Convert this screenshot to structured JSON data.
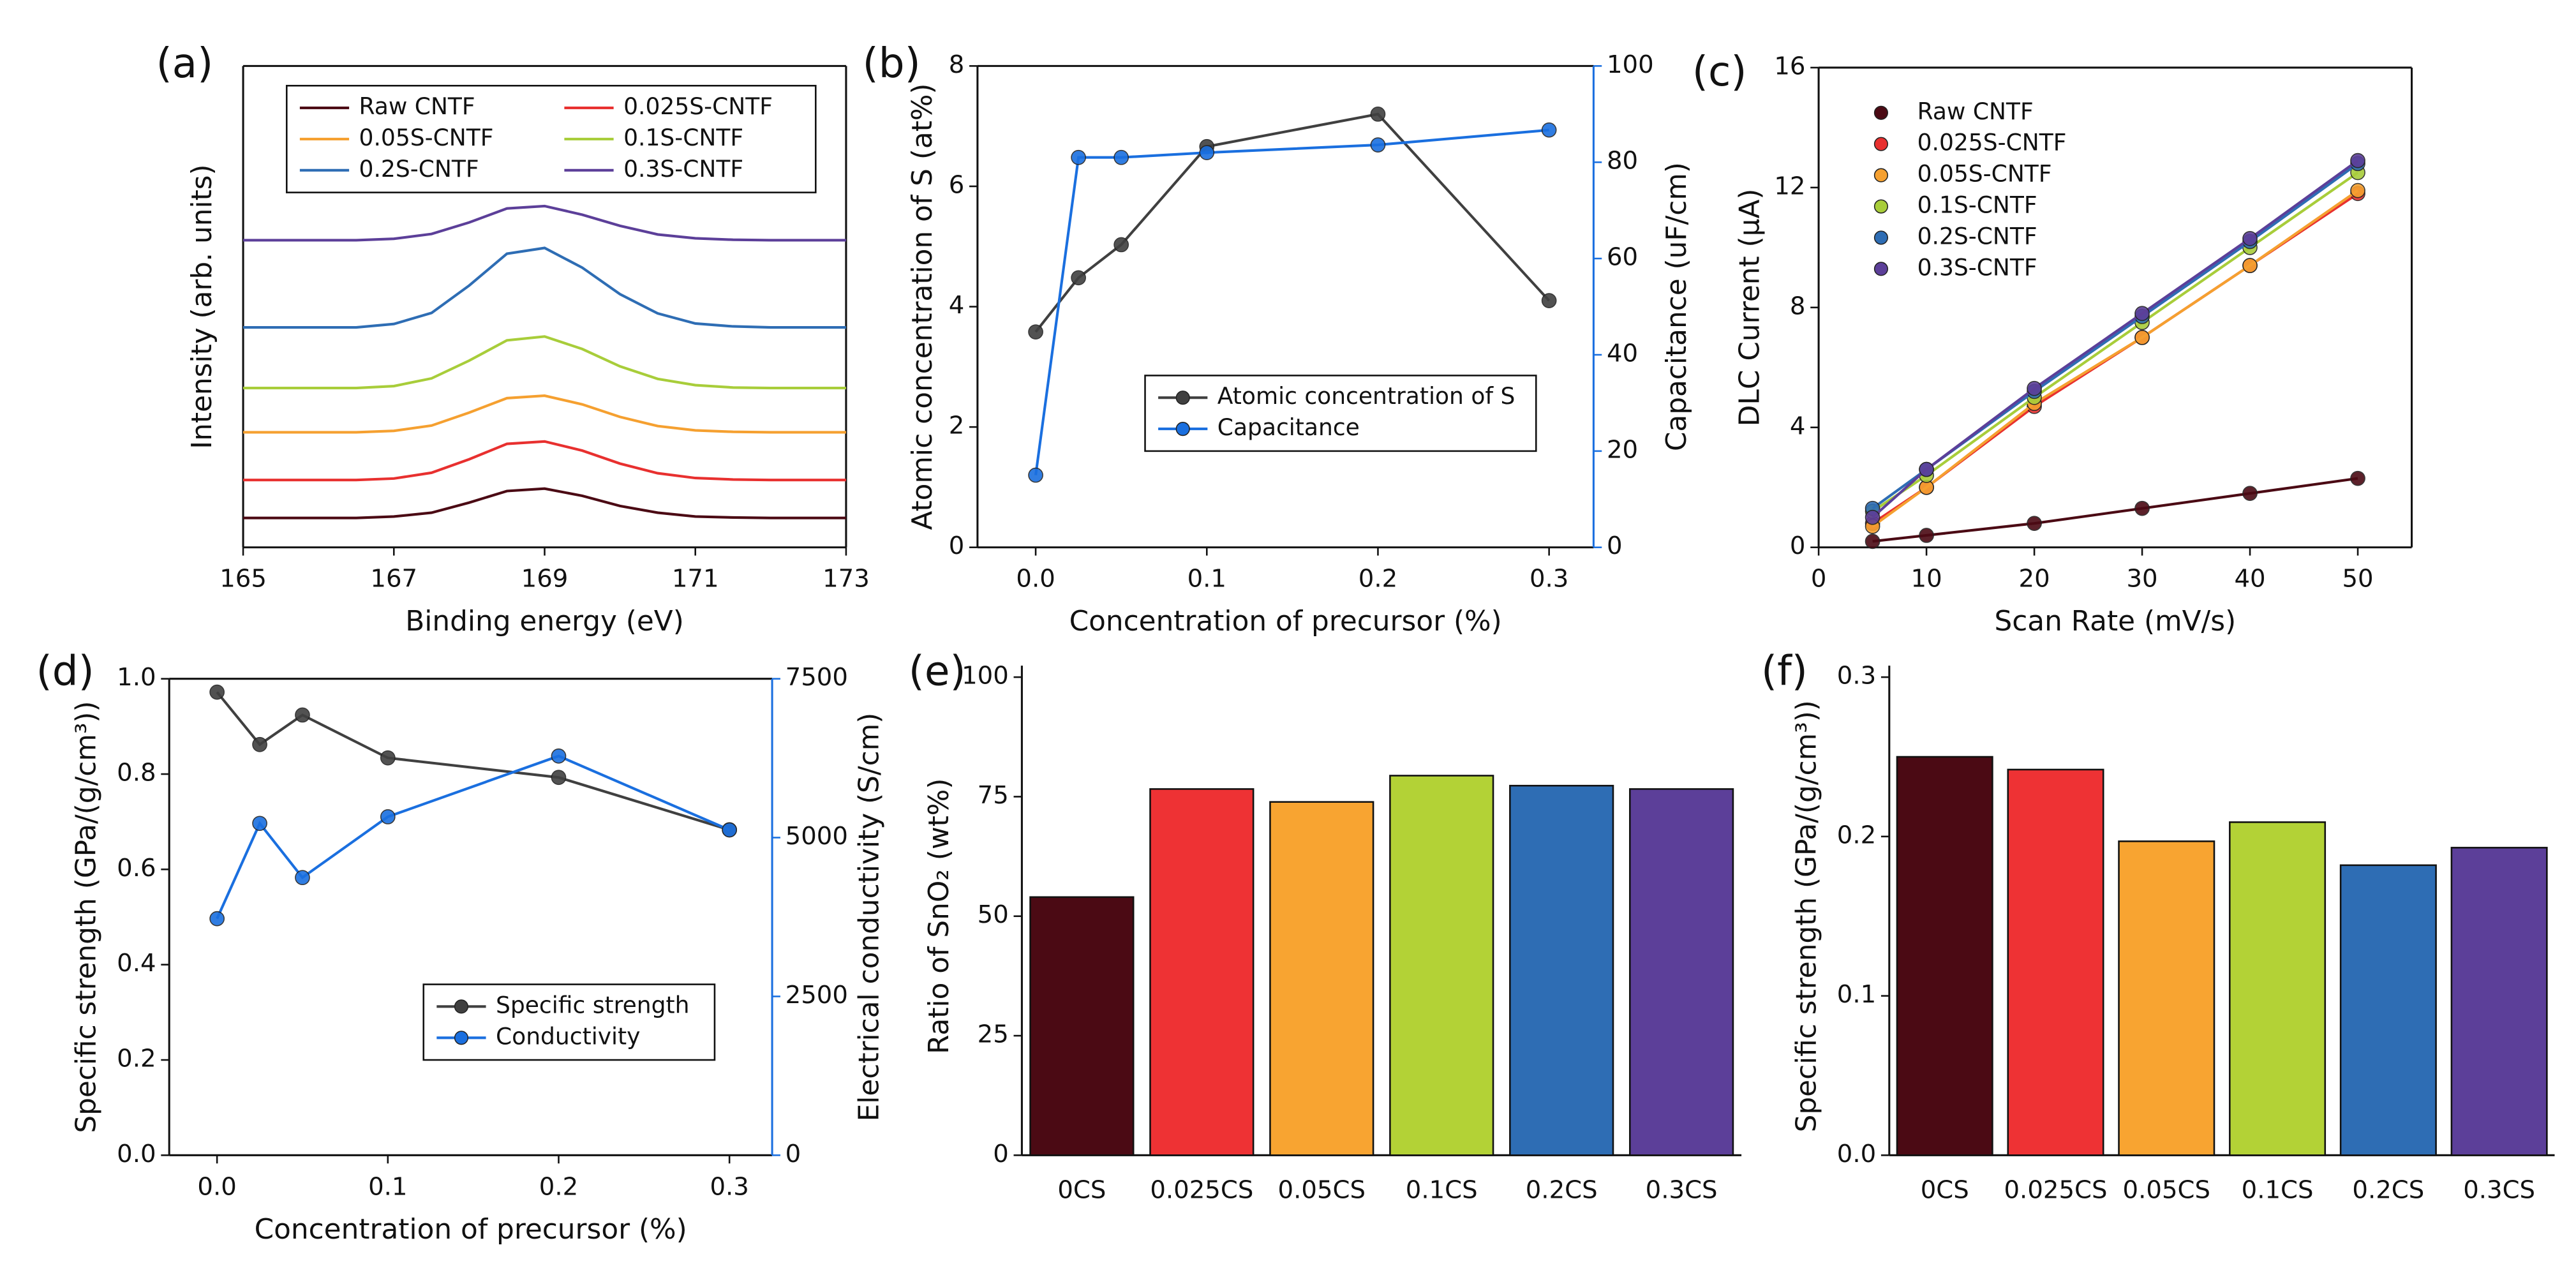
{
  "chart_data": [
    {
      "type": "line",
      "label": "(a)",
      "xlabel": "Binding energy (eV)",
      "ylabel": "Intensity (arb. units)",
      "x": [
        165,
        165.5,
        166,
        166.5,
        167,
        167.5,
        168,
        168.5,
        169,
        169.5,
        170,
        170.5,
        171,
        171.5,
        172,
        172.5,
        173
      ],
      "xlim": [
        165,
        173
      ],
      "xticks": [
        165,
        167,
        169,
        171,
        173
      ],
      "ylim": [
        0,
        100
      ],
      "markers": false,
      "legend": "upper center",
      "legend_columns": 2,
      "legend_frame": true,
      "series": [
        {
          "name": "Raw CNTF",
          "color": "#4b0a14",
          "values": [
            6.1,
            6.1,
            6.1,
            6.1,
            6.4,
            7.2,
            9.3,
            11.7,
            12.2,
            10.7,
            8.6,
            7.2,
            6.4,
            6.2,
            6.1,
            6.1,
            6.1
          ]
        },
        {
          "name": "0.025S-CNTF",
          "color": "#e8302f",
          "values": [
            14,
            14,
            14,
            14,
            14.3,
            15.5,
            18.3,
            21.5,
            22,
            20.1,
            17.4,
            15.4,
            14.4,
            14.1,
            14,
            14,
            14
          ]
        },
        {
          "name": "0.05S-CNTF",
          "color": "#f5a030",
          "values": [
            23.9,
            23.9,
            23.9,
            23.9,
            24.2,
            25.3,
            28,
            31,
            31.5,
            29.7,
            27.1,
            25.2,
            24.3,
            24,
            23.9,
            23.9,
            23.9
          ]
        },
        {
          "name": "0.1S-CNTF",
          "color": "#a8cd3a",
          "values": [
            33.1,
            33.1,
            33.1,
            33.1,
            33.5,
            35.1,
            38.8,
            43,
            43.8,
            41.2,
            37.6,
            35,
            33.7,
            33.2,
            33.1,
            33.1,
            33.1
          ]
        },
        {
          "name": "0.2S-CNTF",
          "color": "#2e6db4",
          "values": [
            45.7,
            45.7,
            45.7,
            45.7,
            46.4,
            48.7,
            54.4,
            61,
            62.2,
            58.1,
            52.6,
            48.6,
            46.5,
            45.9,
            45.7,
            45.7,
            45.7
          ]
        },
        {
          "name": "0.3S-CNTF",
          "color": "#5c3f99",
          "values": [
            63.8,
            63.8,
            63.8,
            63.8,
            64.1,
            65.1,
            67.5,
            70.4,
            70.9,
            69.1,
            66.8,
            65,
            64.2,
            63.9,
            63.8,
            63.8,
            63.8
          ]
        }
      ]
    },
    {
      "type": "line",
      "label": "(b)",
      "xlabel": "Concentration of precursor (%)",
      "ylabel": "Atomic concentration of S (at%)",
      "y2label": "Capacitance (uF/cm)",
      "x": [
        0,
        0.025,
        0.05,
        0.1,
        0.2,
        0.3
      ],
      "xlim": [
        -0.034,
        0.326
      ],
      "xticks": [
        {
          "value": 0,
          "label": "0.0"
        },
        0.1,
        0.2,
        0.3
      ],
      "ylim": [
        0,
        8
      ],
      "yticks": [
        0,
        2,
        4,
        6,
        8
      ],
      "y2lim": [
        0,
        100
      ],
      "y2ticks": [
        0,
        20,
        40,
        60,
        80,
        100
      ],
      "markers": true,
      "legend": "lower right",
      "legend_frame": true,
      "series": [
        {
          "name": "Atomic concentration of S",
          "color": "#404040",
          "values": [
            3.58,
            4.48,
            5.03,
            6.66,
            7.2,
            4.1
          ]
        },
        {
          "name": "Capacitance",
          "color": "#1a6fdf",
          "axis": "y2",
          "values": [
            15,
            81,
            81,
            82,
            83.6,
            86.7
          ]
        }
      ]
    },
    {
      "type": "scatter",
      "label": "(c)",
      "xlabel": "Scan Rate (mV/s)",
      "ylabel": "DLC Current (μA)",
      "x": [
        5,
        10,
        20,
        30,
        40,
        50
      ],
      "xlim": [
        0,
        55
      ],
      "xticks": [
        0,
        10,
        20,
        30,
        40,
        50
      ],
      "ylim": [
        0,
        16
      ],
      "yticks": [
        0,
        4,
        8,
        12,
        16
      ],
      "fit_lines": true,
      "legend": "upper left",
      "legend_frame": false,
      "series": [
        {
          "name": "Raw CNTF",
          "color": "#4b0a14",
          "values": [
            0.2,
            0.4,
            0.8,
            1.3,
            1.8,
            2.3
          ]
        },
        {
          "name": "0.025S-CNTF",
          "color": "#e8302f",
          "values": [
            0.8,
            2.0,
            4.7,
            7.0,
            9.4,
            11.8
          ]
        },
        {
          "name": "0.05S-CNTF",
          "color": "#f5a030",
          "values": [
            0.7,
            2.0,
            4.8,
            7.0,
            9.4,
            11.9
          ]
        },
        {
          "name": "0.1S-CNTF",
          "color": "#a8cd3a",
          "values": [
            1.2,
            2.4,
            5.0,
            7.5,
            10.0,
            12.5
          ]
        },
        {
          "name": "0.2S-CNTF",
          "color": "#2e6db4",
          "values": [
            1.3,
            2.6,
            5.2,
            7.7,
            10.2,
            12.8
          ]
        },
        {
          "name": "0.3S-CNTF",
          "color": "#5c3f99",
          "values": [
            1.0,
            2.6,
            5.3,
            7.8,
            10.3,
            12.9
          ]
        }
      ]
    },
    {
      "type": "line",
      "label": "(d)",
      "xlabel": "Concentration of precursor (%)",
      "ylabel": "Specific strength (GPa/(g/cm³))",
      "y2label": "Electrical conductivity (S/cm)",
      "x": [
        0,
        0.025,
        0.05,
        0.1,
        0.2,
        0.3
      ],
      "xlim": [
        -0.028,
        0.325
      ],
      "xticks": [
        {
          "value": 0,
          "label": "0.0"
        },
        0.1,
        0.2,
        0.3
      ],
      "ylim": [
        0,
        1.0
      ],
      "yticks": [
        {
          "value": 0,
          "label": "0.0"
        },
        0.2,
        0.4,
        0.6,
        0.8,
        {
          "value": 1.0,
          "label": "1.0"
        }
      ],
      "y2lim": [
        0,
        7500
      ],
      "y2ticks": [
        0,
        2500,
        5000,
        7500
      ],
      "markers": true,
      "legend": "lower right",
      "legend_frame": true,
      "series": [
        {
          "name": "Specific strength",
          "color": "#404040",
          "values": [
            0.972,
            0.862,
            0.924,
            0.834,
            0.793,
            0.683
          ]
        },
        {
          "name": "Conductivity",
          "color": "#1a6fdf",
          "axis": "y2",
          "values": [
            3724,
            5224,
            4371,
            5328,
            6284,
            5121
          ]
        }
      ]
    },
    {
      "type": "bar",
      "label": "(e)",
      "ylabel": "Ratio of SnO₂ (wt%)",
      "categories": [
        "0CS",
        "0.025CS",
        "0.05CS",
        "0.1CS",
        "0.2CS",
        "0.3CS"
      ],
      "values": [
        54,
        76.6,
        73.9,
        79.4,
        77.3,
        76.6
      ],
      "colors": [
        "#4b0a14",
        "#ee3234",
        "#f8a431",
        "#b3d236",
        "#2e6db4",
        "#5c3f99"
      ],
      "ylim": [
        0,
        100
      ],
      "yticks": [
        0,
        25,
        50,
        75,
        100
      ]
    },
    {
      "type": "bar",
      "label": "(f)",
      "ylabel": "Specific strength (GPa/(g/cm³))",
      "categories": [
        "0CS",
        "0.025CS",
        "0.05CS",
        "0.1CS",
        "0.2CS",
        "0.3CS"
      ],
      "values": [
        0.25,
        0.242,
        0.197,
        0.209,
        0.182,
        0.193
      ],
      "colors": [
        "#4b0a14",
        "#ee3234",
        "#f8a431",
        "#b3d236",
        "#2e6db4",
        "#5c3f99"
      ],
      "ylim": [
        0,
        0.3
      ],
      "yticks": [
        {
          "value": 0,
          "label": "0.0"
        },
        0.1,
        0.2,
        0.3
      ]
    }
  ]
}
